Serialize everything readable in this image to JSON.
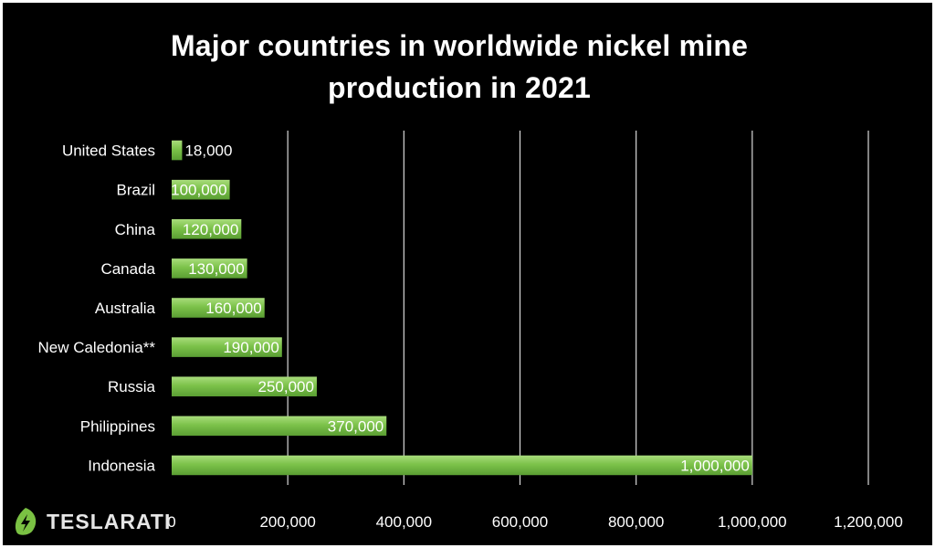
{
  "logo": {
    "text": "TESLARATI",
    "icon": "leaf-bolt-icon",
    "color": "#7ac143"
  },
  "chart_data": {
    "type": "bar",
    "orientation": "horizontal",
    "title": "Major countries in worldwide nickel mine production in 2021",
    "categories": [
      "United States",
      "Brazil",
      "China",
      "Canada",
      "Australia",
      "New Caledonia**",
      "Russia",
      "Philippines",
      "Indonesia"
    ],
    "values": [
      18000,
      100000,
      120000,
      130000,
      160000,
      190000,
      250000,
      370000,
      1000000
    ],
    "data_labels": [
      "18,000",
      "100,000",
      "120,000",
      "130,000",
      "160,000",
      "190,000",
      "250,000",
      "370,000",
      "1,000,000"
    ],
    "xlim": [
      0,
      1200000
    ],
    "x_ticks": [
      0,
      200000,
      400000,
      600000,
      800000,
      1000000,
      1200000
    ],
    "x_tick_labels": [
      "0",
      "200,000",
      "400,000",
      "600,000",
      "800,000",
      "1,000,000",
      "1,200,000"
    ],
    "xlabel": "",
    "ylabel": "",
    "grid": "vertical",
    "legend": "none",
    "colors": {
      "background": "#000000",
      "bar": "#6fb83f",
      "bar_highlight": "#a9dc7c",
      "grid": "#d9d9d9",
      "text": "#ffffff"
    }
  }
}
